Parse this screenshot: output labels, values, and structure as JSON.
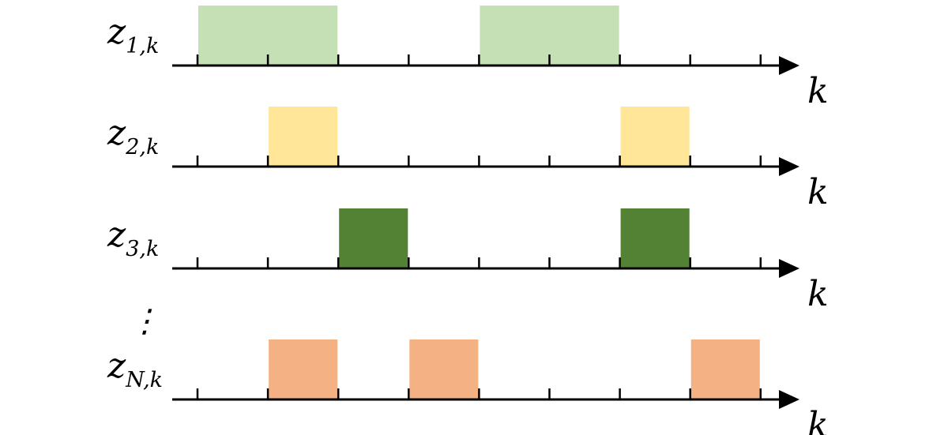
{
  "axis_label": "k",
  "ellipsis": "⋮",
  "tick_count": 9,
  "rows": [
    {
      "var": "z",
      "sub": "1,k",
      "color": "#c5e0b4",
      "pulses": [
        [
          0,
          2
        ],
        [
          4,
          6
        ]
      ]
    },
    {
      "var": "z",
      "sub": "2,k",
      "color": "#ffe699",
      "pulses": [
        [
          1,
          2
        ],
        [
          6,
          7
        ]
      ]
    },
    {
      "var": "z",
      "sub": "3,k",
      "color": "#548235",
      "pulses": [
        [
          2,
          3
        ],
        [
          6,
          7
        ]
      ]
    },
    {
      "var": "z",
      "sub": "N,k",
      "color": "#f4b183",
      "pulses": [
        [
          1,
          2
        ],
        [
          3,
          4
        ],
        [
          7,
          8
        ]
      ]
    }
  ]
}
